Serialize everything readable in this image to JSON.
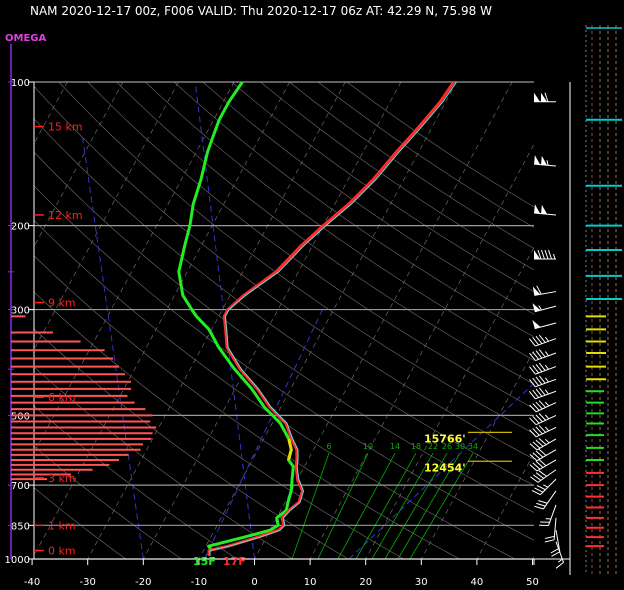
{
  "title": "NAM 2020-12-17 00z, F006  VALID: Thu 2020-12-17 06z  AT: 42.29 N, 75.98 W",
  "omega_label": "OMEGA",
  "colors": {
    "temperature": "#ff2a2a",
    "dewpoint": "#22ee22",
    "virtual_temperature": "#66dddd",
    "height_labels": "#ff2020",
    "omega_bars": "#ff5555",
    "dry_adiabat": "#707070",
    "moist_adiabat": "#3333cc",
    "mixing_ratio": "#00b000",
    "level_marker": "#c8b400"
  },
  "chart_data": {
    "type": "line",
    "title": "",
    "xlabel": "",
    "ylabel": "",
    "x_ticks": [
      -40,
      -30,
      -20,
      -10,
      0,
      10,
      20,
      30,
      40,
      50
    ],
    "y_ticks": [
      100,
      200,
      300,
      500,
      700,
      850,
      1000
    ],
    "y_scale": "log-pressure (hPa)",
    "xlim": [
      -40,
      50
    ],
    "ylim": [
      1000,
      100
    ],
    "height_labels": [
      {
        "label": "15 km",
        "p": 124
      },
      {
        "label": "12 km",
        "p": 190
      },
      {
        "label": "9 km",
        "p": 290
      },
      {
        "label": "6 km",
        "p": 458
      },
      {
        "label": "3 km",
        "p": 676
      },
      {
        "label": "1 km",
        "p": 850
      },
      {
        "label": "0 km",
        "p": 960
      }
    ],
    "mixing_ratio_labels": [
      "6",
      "10",
      "14",
      "18",
      "22",
      "26",
      "30",
      "34"
    ],
    "level_markers": [
      {
        "label": "15766'",
        "p": 548
      },
      {
        "label": "12454'",
        "p": 630
      }
    ],
    "surface_labels": [
      {
        "label": "15F",
        "color": "#22ee22"
      },
      {
        "label": "17F",
        "color": "#ff2a2a"
      }
    ],
    "series": [
      {
        "role": "temperature",
        "points": [
          [
            -8.5,
            985
          ],
          [
            -9,
            960
          ],
          [
            -6,
            940
          ],
          [
            -1.5,
            900
          ],
          [
            1.5,
            870
          ],
          [
            2,
            850
          ],
          [
            1,
            820
          ],
          [
            1.5,
            790
          ],
          [
            2.5,
            760
          ],
          [
            2,
            720
          ],
          [
            0,
            680
          ],
          [
            -1.5,
            640
          ],
          [
            -2,
            620
          ],
          [
            -3,
            590
          ],
          [
            -5,
            560
          ],
          [
            -7.5,
            520
          ],
          [
            -12,
            480
          ],
          [
            -16,
            440
          ],
          [
            -21,
            400
          ],
          [
            -25.5,
            360
          ],
          [
            -27.5,
            330
          ],
          [
            -29,
            310
          ],
          [
            -29,
            300
          ],
          [
            -27.5,
            280
          ],
          [
            -24,
            250
          ],
          [
            -22,
            220
          ],
          [
            -20,
            200
          ],
          [
            -17.5,
            180
          ],
          [
            -15.5,
            160
          ],
          [
            -14,
            140
          ],
          [
            -13,
            130
          ],
          [
            -12,
            120
          ],
          [
            -11,
            110
          ],
          [
            -10.5,
            100
          ]
        ]
      },
      {
        "role": "virtual_temperature",
        "points": [
          [
            -8.3,
            985
          ],
          [
            -8.8,
            960
          ],
          [
            -5.8,
            940
          ],
          [
            -1.2,
            900
          ],
          [
            1.8,
            870
          ],
          [
            2.2,
            850
          ],
          [
            1.2,
            820
          ],
          [
            1.7,
            790
          ],
          [
            2.7,
            760
          ],
          [
            2.2,
            720
          ],
          [
            0.2,
            680
          ],
          [
            -1.3,
            640
          ],
          [
            -1.8,
            620
          ],
          [
            -2.8,
            590
          ],
          [
            -4.8,
            560
          ],
          [
            -7.3,
            520
          ],
          [
            -11.8,
            480
          ],
          [
            -15.8,
            440
          ],
          [
            -20.8,
            400
          ],
          [
            -25.3,
            360
          ],
          [
            -27.3,
            330
          ],
          [
            -28.8,
            310
          ],
          [
            -28.8,
            300
          ],
          [
            -27.2,
            280
          ],
          [
            -23.5,
            250
          ],
          [
            -21.5,
            220
          ],
          [
            -19.5,
            200
          ],
          [
            -17,
            180
          ],
          [
            -15,
            160
          ],
          [
            -13.5,
            140
          ],
          [
            -12.5,
            130
          ],
          [
            -11.5,
            120
          ],
          [
            -10.5,
            110
          ],
          [
            -10,
            100
          ]
        ]
      },
      {
        "role": "dewpoint",
        "points": [
          [
            -8.5,
            960
          ],
          [
            -9.5,
            940
          ],
          [
            -4,
            900
          ],
          [
            0,
            870
          ],
          [
            1,
            850
          ],
          [
            0,
            820
          ],
          [
            1,
            790
          ],
          [
            0.5,
            760
          ],
          [
            0,
            720
          ],
          [
            -1,
            680
          ],
          [
            -2,
            640
          ],
          [
            -3.5,
            620
          ],
          [
            -4,
            590
          ],
          [
            -5.5,
            560
          ],
          [
            -8.5,
            520
          ],
          [
            -13,
            480
          ],
          [
            -17,
            440
          ],
          [
            -22,
            400
          ],
          [
            -27,
            360
          ],
          [
            -30.5,
            330
          ],
          [
            -34,
            310
          ],
          [
            -35.5,
            300
          ],
          [
            -38.5,
            280
          ],
          [
            -41.5,
            250
          ],
          [
            -43,
            220
          ],
          [
            -44,
            200
          ],
          [
            -45.5,
            180
          ],
          [
            -46.5,
            160
          ],
          [
            -48,
            140
          ],
          [
            -48.5,
            130
          ],
          [
            -49,
            120
          ],
          [
            -49,
            110
          ],
          [
            -48.5,
            100
          ]
        ]
      },
      {
        "role": "dewpoint_highlight",
        "points": [
          [
            -3.5,
            620
          ],
          [
            -4,
            590
          ],
          [
            -5.5,
            560
          ]
        ]
      }
    ],
    "omega": [
      {
        "p": 310,
        "value": 12
      },
      {
        "p": 335,
        "value": 35
      },
      {
        "p": 350,
        "value": 58
      },
      {
        "p": 365,
        "value": 78
      },
      {
        "p": 380,
        "value": 85
      },
      {
        "p": 395,
        "value": 90
      },
      {
        "p": 410,
        "value": 95
      },
      {
        "p": 425,
        "value": 100
      },
      {
        "p": 440,
        "value": 100
      },
      {
        "p": 455,
        "value": 97
      },
      {
        "p": 470,
        "value": 103
      },
      {
        "p": 485,
        "value": 112
      },
      {
        "p": 500,
        "value": 118
      },
      {
        "p": 515,
        "value": 116
      },
      {
        "p": 530,
        "value": 121
      },
      {
        "p": 545,
        "value": 118
      },
      {
        "p": 560,
        "value": 117
      },
      {
        "p": 575,
        "value": 110
      },
      {
        "p": 590,
        "value": 108
      },
      {
        "p": 605,
        "value": 98
      },
      {
        "p": 620,
        "value": 90
      },
      {
        "p": 635,
        "value": 82
      },
      {
        "p": 650,
        "value": 68
      },
      {
        "p": 665,
        "value": 50
      },
      {
        "p": 680,
        "value": 30
      }
    ],
    "wind_barbs": [
      {
        "p": 110,
        "dir": 270,
        "speed": 110
      },
      {
        "p": 150,
        "dir": 275,
        "speed": 105
      },
      {
        "p": 190,
        "dir": 275,
        "speed": 100
      },
      {
        "p": 235,
        "dir": 270,
        "speed": 95
      },
      {
        "p": 275,
        "dir": 260,
        "speed": 60
      },
      {
        "p": 295,
        "dir": 255,
        "speed": 55
      },
      {
        "p": 320,
        "dir": 255,
        "speed": 50
      },
      {
        "p": 345,
        "dir": 250,
        "speed": 45
      },
      {
        "p": 370,
        "dir": 250,
        "speed": 45
      },
      {
        "p": 395,
        "dir": 250,
        "speed": 45
      },
      {
        "p": 420,
        "dir": 250,
        "speed": 45
      },
      {
        "p": 445,
        "dir": 250,
        "speed": 45
      },
      {
        "p": 470,
        "dir": 245,
        "speed": 45
      },
      {
        "p": 500,
        "dir": 245,
        "speed": 45
      },
      {
        "p": 530,
        "dir": 245,
        "speed": 45
      },
      {
        "p": 560,
        "dir": 240,
        "speed": 45
      },
      {
        "p": 590,
        "dir": 240,
        "speed": 40
      },
      {
        "p": 620,
        "dir": 240,
        "speed": 40
      },
      {
        "p": 650,
        "dir": 235,
        "speed": 40
      },
      {
        "p": 680,
        "dir": 225,
        "speed": 35
      },
      {
        "p": 720,
        "dir": 215,
        "speed": 30
      },
      {
        "p": 770,
        "dir": 200,
        "speed": 25
      },
      {
        "p": 820,
        "dir": 185,
        "speed": 20
      },
      {
        "p": 870,
        "dir": 170,
        "speed": 20
      },
      {
        "p": 920,
        "dir": 160,
        "speed": 15
      }
    ],
    "wind_speed_bars": [
      {
        "p": 120,
        "color": "#00cccc"
      },
      {
        "p": 165,
        "color": "#00cccc"
      },
      {
        "p": 200,
        "color": "#00cccc"
      },
      {
        "p": 225,
        "color": "#00cccc"
      },
      {
        "p": 255,
        "color": "#00cccc"
      },
      {
        "p": 285,
        "color": "#00cccc"
      },
      {
        "p": 310,
        "color": "#e0e000"
      },
      {
        "p": 330,
        "color": "#e0e000"
      },
      {
        "p": 350,
        "color": "#e0e000"
      },
      {
        "p": 370,
        "color": "#e0e000"
      },
      {
        "p": 395,
        "color": "#e0e000"
      },
      {
        "p": 420,
        "color": "#e0e000"
      },
      {
        "p": 445,
        "color": "#22dd22"
      },
      {
        "p": 470,
        "color": "#22dd22"
      },
      {
        "p": 495,
        "color": "#22dd22"
      },
      {
        "p": 520,
        "color": "#22dd22"
      },
      {
        "p": 550,
        "color": "#22dd22"
      },
      {
        "p": 585,
        "color": "#22dd22"
      },
      {
        "p": 620,
        "color": "#22dd22"
      },
      {
        "p": 660,
        "color": "#ff3030"
      },
      {
        "p": 700,
        "color": "#ff3030"
      },
      {
        "p": 740,
        "color": "#ff3030"
      },
      {
        "p": 780,
        "color": "#ff3030"
      },
      {
        "p": 820,
        "color": "#ff3030"
      },
      {
        "p": 860,
        "color": "#ff3030"
      },
      {
        "p": 900,
        "color": "#ff3030"
      },
      {
        "p": 940,
        "color": "#ff3030"
      }
    ]
  }
}
